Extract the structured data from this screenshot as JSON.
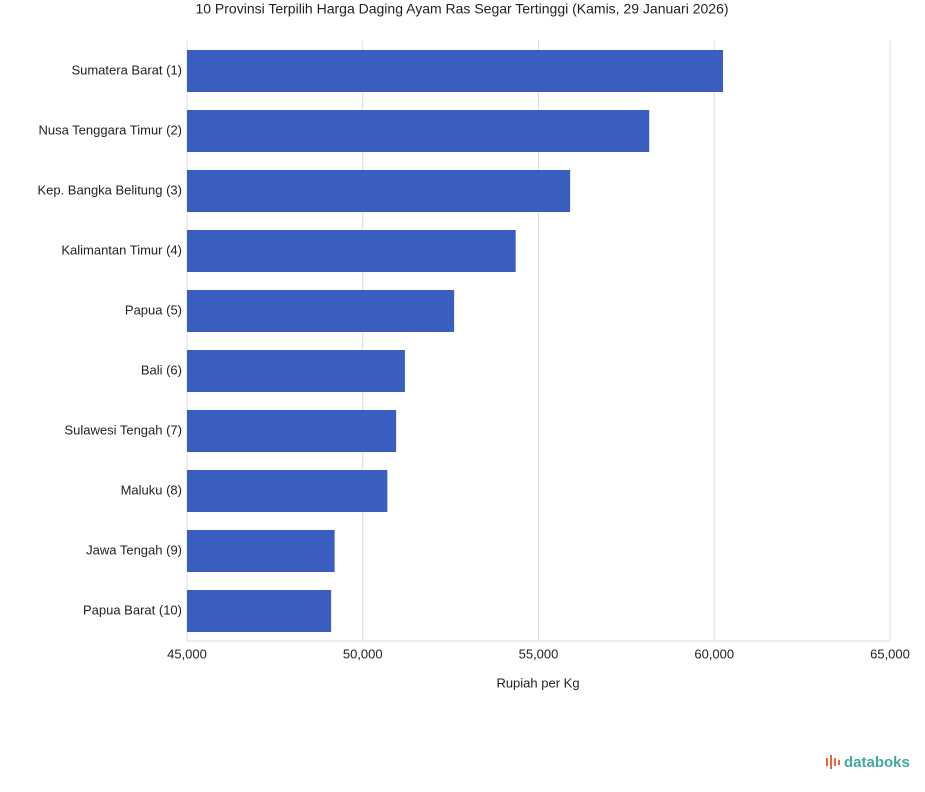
{
  "chart_data": {
    "type": "bar",
    "orientation": "horizontal",
    "title": "10 Provinsi Terpilih Harga Daging Ayam Ras Segar Tertinggi (Kamis, 29 Januari 2026)",
    "x_label": "Rupiah per Kg",
    "categories": [
      "Sumatera Barat (1)",
      "Nusa Tenggara Timur (2)",
      "Kep. Bangka Belitung (3)",
      "Kalimantan Timur (4)",
      "Papua (5)",
      "Bali (6)",
      "Sulawesi Tengah (7)",
      "Maluku (8)",
      "Jawa Tengah (9)",
      "Papua Barat (10)"
    ],
    "values": [
      60250,
      58150,
      55900,
      54350,
      52600,
      51200,
      50950,
      50700,
      49200,
      49100
    ],
    "color": "#3a5dc0",
    "xlim": [
      45000,
      65000
    ],
    "xticks": [
      {
        "value": 45000,
        "label": "45,000"
      },
      {
        "value": 50000,
        "label": "50,000"
      },
      {
        "value": 55000,
        "label": "55,000"
      },
      {
        "value": 60000,
        "label": "60,000"
      },
      {
        "value": 65000,
        "label": "65,000"
      }
    ],
    "grid": true,
    "watermark": "databoks"
  }
}
